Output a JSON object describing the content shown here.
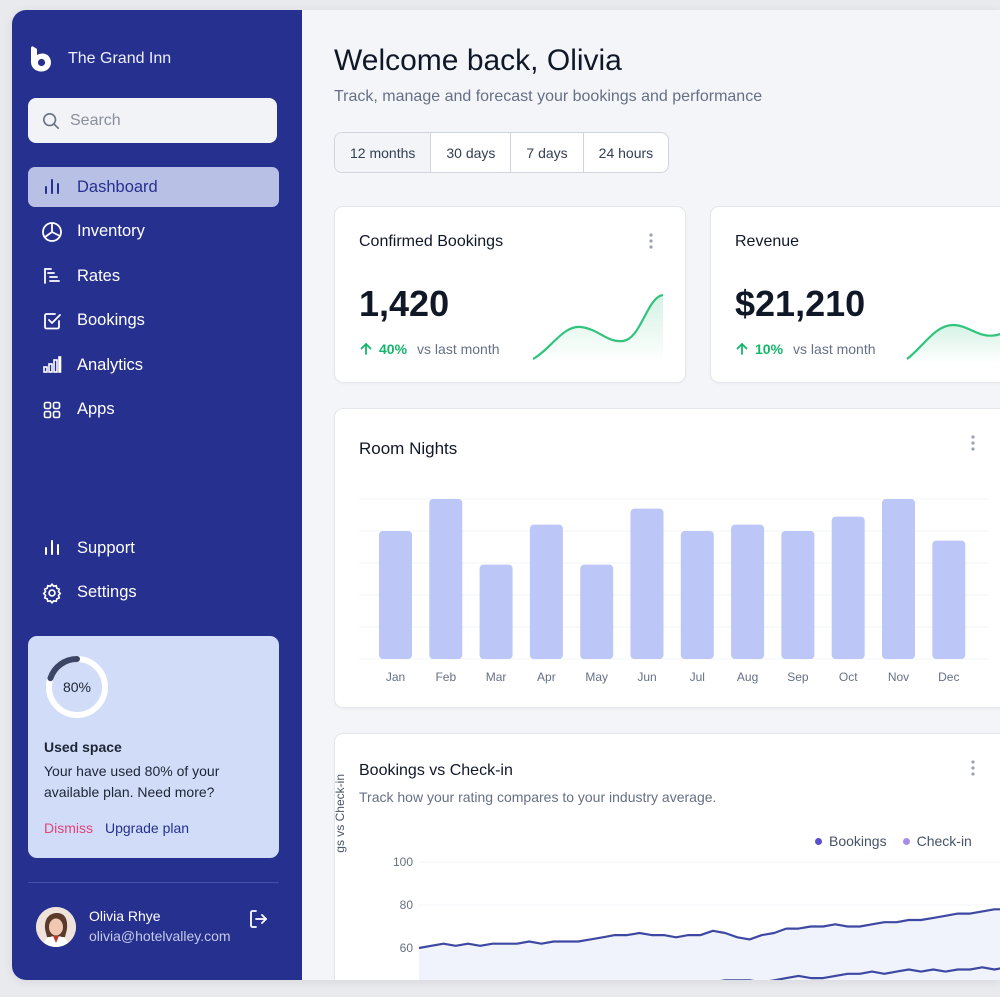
{
  "brand": {
    "name": "The Grand Inn"
  },
  "search": {
    "placeholder": "Search"
  },
  "nav": {
    "items": [
      {
        "label": "Dashboard",
        "icon": "bar-chart-icon",
        "active": true
      },
      {
        "label": "Inventory",
        "icon": "pie-chart-icon"
      },
      {
        "label": "Rates",
        "icon": "rates-icon"
      },
      {
        "label": "Bookings",
        "icon": "check-square-icon"
      },
      {
        "label": "Analytics",
        "icon": "analytics-icon"
      },
      {
        "label": "Apps",
        "icon": "grid-icon"
      }
    ],
    "bottom": [
      {
        "label": "Support",
        "icon": "bar-chart-icon"
      },
      {
        "label": "Settings",
        "icon": "gear-icon"
      }
    ]
  },
  "usage": {
    "percent_label": "80%",
    "percent": 0.8,
    "title": "Used space",
    "description": "Your have used 80% of your available plan. Need more?",
    "dismiss": "Dismiss",
    "upgrade": "Upgrade plan"
  },
  "profile": {
    "name": "Olivia Rhye",
    "email": "olivia@hotelvalley.com"
  },
  "header": {
    "title": "Welcome back, Olivia",
    "subtitle": "Track, manage and forecast your bookings and performance"
  },
  "ranges": [
    {
      "label": "12 months",
      "active": true
    },
    {
      "label": "30 days"
    },
    {
      "label": "7 days"
    },
    {
      "label": "24 hours"
    }
  ],
  "metrics": {
    "bookings": {
      "title": "Confirmed Bookings",
      "value": "1,420",
      "change": "40%",
      "vs": "vs last month"
    },
    "revenue": {
      "title": "Revenue",
      "value": "$21,210",
      "change": "10%",
      "vs": "vs last month"
    }
  },
  "room_nights": {
    "title": "Room Nights"
  },
  "bookings_vs_checkin": {
    "title": "Bookings vs Check-in",
    "subtitle": "Track how your rating compares to your industry average.",
    "legend": [
      "Bookings",
      "Check-in"
    ],
    "ylabel_visible": "gs vs Check-in"
  },
  "colors": {
    "sidebar": "#26308f",
    "bar": "#bcc6f7",
    "accent": "#26308f",
    "positive": "#12b76a",
    "line": "#3e48a3",
    "checkin": "#a88de8"
  },
  "chart_data": [
    {
      "type": "bar",
      "title": "Room Nights",
      "categories": [
        "Jan",
        "Feb",
        "Mar",
        "Apr",
        "May",
        "Jun",
        "Jul",
        "Aug",
        "Sep",
        "Oct",
        "Nov",
        "Dec"
      ],
      "values": [
        80,
        100,
        59,
        84,
        59,
        94,
        80,
        84,
        80,
        89,
        100,
        74
      ],
      "ylim": [
        0,
        100
      ],
      "grid": true
    },
    {
      "type": "line",
      "title": "Bookings vs Check-in",
      "ylabel": "",
      "yticks": [
        100,
        80,
        60
      ],
      "ylim": [
        30,
        100
      ],
      "x": [
        1,
        2,
        3,
        4,
        5,
        6,
        7,
        8,
        9,
        10,
        11,
        12,
        13,
        14,
        15,
        16,
        17,
        18,
        19,
        20,
        21,
        22,
        23,
        24,
        25,
        26,
        27,
        28,
        29,
        30,
        31,
        32,
        33,
        34,
        35,
        36,
        37,
        38,
        39,
        40,
        41,
        42,
        43,
        44,
        45,
        46,
        47,
        48,
        49,
        50
      ],
      "series": [
        {
          "name": "Bookings",
          "values": [
            60,
            61,
            62,
            61,
            62,
            61,
            62,
            62,
            62,
            63,
            62,
            63,
            63,
            63,
            64,
            65,
            66,
            66,
            67,
            66,
            66,
            65,
            66,
            66,
            68,
            67,
            65,
            64,
            66,
            67,
            69,
            69,
            70,
            70,
            71,
            70,
            70,
            71,
            72,
            72,
            73,
            73,
            74,
            75,
            76,
            76,
            77,
            78,
            78,
            82
          ]
        },
        {
          "name": "Check-in",
          "values": [
            38,
            38,
            39,
            39,
            40,
            40,
            39,
            40,
            40,
            41,
            41,
            40,
            41,
            41,
            42,
            42,
            43,
            43,
            43,
            42,
            43,
            44,
            44,
            43,
            44,
            45,
            45,
            45,
            44,
            45,
            46,
            47,
            46,
            46,
            47,
            48,
            48,
            49,
            48,
            49,
            50,
            49,
            50,
            49,
            50,
            50,
            51,
            50,
            51,
            52
          ]
        }
      ],
      "legend": "top-right",
      "grid": true
    }
  ]
}
